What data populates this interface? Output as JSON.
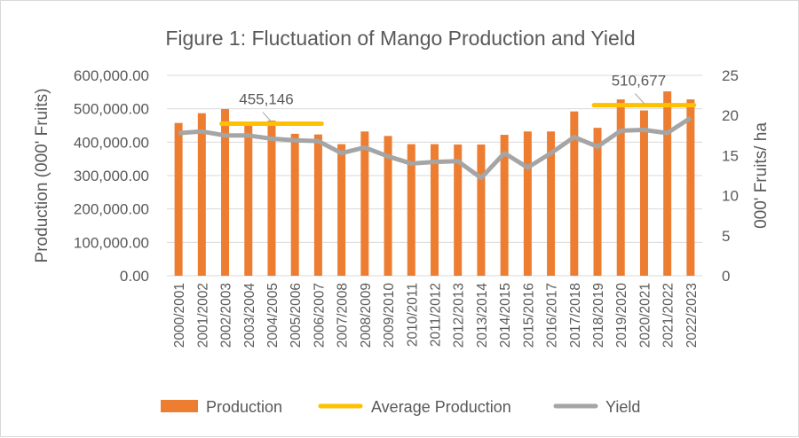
{
  "chart_data": {
    "type": "bar",
    "title": "Figure 1: Fluctuation of Mango Production and Yield",
    "ylabel": "Production (000' Fruits)",
    "y2label": "000' Fruits/ ha",
    "ylim": [
      0,
      600000
    ],
    "y2lim": [
      0,
      25
    ],
    "yticks": [
      "0.00",
      "100,000.00",
      "200,000.00",
      "300,000.00",
      "400,000.00",
      "500,000.00",
      "600,000.00"
    ],
    "y2ticks": [
      "0",
      "5",
      "10",
      "15",
      "20",
      "25"
    ],
    "grid": true,
    "legend_position": "bottom",
    "categories": [
      "2000/2001",
      "2001/2002",
      "2002/2003",
      "2003/2004",
      "2004/2005",
      "2005/2006",
      "2006/2007",
      "2007/2008",
      "2008/2009",
      "2009/2010",
      "2010/2011",
      "2011/2012",
      "2012/2013",
      "2013/2014",
      "2014/2015",
      "2015/2016",
      "2016/2017",
      "2017/2018",
      "2018/2019",
      "2019/2020",
      "2020/2021",
      "2021/2022",
      "2022/2023"
    ],
    "series": [
      {
        "name": "Production",
        "type": "bar",
        "axis": "left",
        "color": "#ed7d31",
        "values": [
          457500,
          486700,
          499000,
          451000,
          464600,
          425000,
          423000,
          394000,
          432000,
          418600,
          394000,
          394000,
          393000,
          393000,
          422000,
          432000,
          432000,
          492000,
          443000,
          528000,
          495000,
          552000,
          528000
        ]
      },
      {
        "name": "Average Production",
        "type": "line",
        "axis": "left",
        "color": "#ffc000",
        "segments": [
          {
            "from": "2002/2003",
            "to": "2006/2007",
            "value": 455146,
            "label": "455,146"
          },
          {
            "from": "2018/2019",
            "to": "2022/2023",
            "value": 510677,
            "label": "510,677"
          }
        ]
      },
      {
        "name": "Yield",
        "type": "line",
        "axis": "right",
        "color": "#a5a5a5",
        "values": [
          17.8,
          18.0,
          17.5,
          17.5,
          17.1,
          16.9,
          16.8,
          15.3,
          16.0,
          14.9,
          14.0,
          14.2,
          14.3,
          12.2,
          15.3,
          13.5,
          15.3,
          17.3,
          16.1,
          18.1,
          18.2,
          17.8,
          19.7
        ]
      }
    ]
  }
}
